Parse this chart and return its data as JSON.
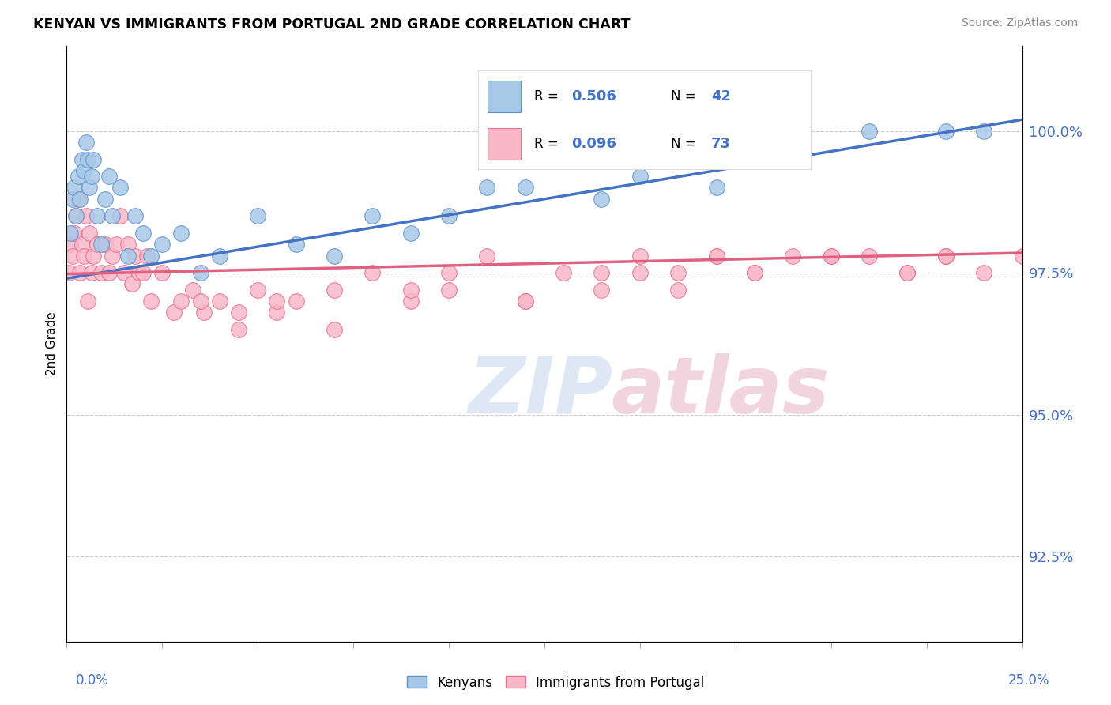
{
  "title": "KENYAN VS IMMIGRANTS FROM PORTUGAL 2ND GRADE CORRELATION CHART",
  "source": "Source: ZipAtlas.com",
  "ylabel": "2nd Grade",
  "y_tick_labels": [
    "92.5%",
    "95.0%",
    "97.5%",
    "100.0%"
  ],
  "y_tick_values": [
    92.5,
    95.0,
    97.5,
    100.0
  ],
  "x_min": 0.0,
  "x_max": 25.0,
  "y_min": 91.0,
  "y_max": 101.5,
  "blue_R": 0.506,
  "blue_N": 42,
  "pink_R": 0.096,
  "pink_N": 73,
  "blue_color": "#a8c8e8",
  "pink_color": "#f8b8c8",
  "blue_edge_color": "#6090c8",
  "pink_edge_color": "#e87090",
  "blue_line_color": "#4472c4",
  "pink_line_color": "#e06080",
  "legend_label_blue": "Kenyans",
  "legend_label_pink": "Immigrants from Portugal",
  "blue_scatter_x": [
    0.1,
    0.15,
    0.2,
    0.25,
    0.3,
    0.35,
    0.4,
    0.45,
    0.5,
    0.55,
    0.6,
    0.65,
    0.7,
    0.8,
    0.9,
    1.0,
    1.1,
    1.2,
    1.4,
    1.6,
    1.8,
    2.0,
    2.2,
    2.5,
    3.0,
    3.5,
    4.0,
    5.0,
    6.0,
    7.0,
    8.0,
    9.0,
    10.0,
    11.0,
    12.0,
    14.0,
    15.0,
    17.0,
    19.0,
    21.0,
    23.0,
    24.0
  ],
  "blue_scatter_y": [
    98.2,
    98.8,
    99.0,
    98.5,
    99.2,
    98.8,
    99.5,
    99.3,
    99.8,
    99.5,
    99.0,
    99.2,
    99.5,
    98.5,
    98.0,
    98.8,
    99.2,
    98.5,
    99.0,
    97.8,
    98.5,
    98.2,
    97.8,
    98.0,
    98.2,
    97.5,
    97.8,
    98.5,
    98.0,
    97.8,
    98.5,
    98.2,
    98.5,
    99.0,
    99.0,
    98.8,
    99.2,
    99.0,
    99.5,
    100.0,
    100.0,
    100.0
  ],
  "pink_scatter_x": [
    0.05,
    0.1,
    0.15,
    0.2,
    0.25,
    0.3,
    0.35,
    0.4,
    0.45,
    0.5,
    0.55,
    0.6,
    0.65,
    0.7,
    0.8,
    0.9,
    1.0,
    1.1,
    1.2,
    1.3,
    1.4,
    1.5,
    1.6,
    1.7,
    1.8,
    1.9,
    2.0,
    2.1,
    2.2,
    2.5,
    2.8,
    3.0,
    3.3,
    3.6,
    4.0,
    4.5,
    5.0,
    5.5,
    6.0,
    7.0,
    8.0,
    9.0,
    10.0,
    11.0,
    12.0,
    13.0,
    14.0,
    15.0,
    16.0,
    17.0,
    18.0,
    19.0,
    20.0,
    21.0,
    22.0,
    23.0,
    24.0,
    25.0,
    3.5,
    4.5,
    5.5,
    7.0,
    9.0,
    12.0,
    15.0,
    17.0,
    20.0,
    22.0,
    23.0,
    18.0,
    10.0,
    14.0,
    16.0
  ],
  "pink_scatter_y": [
    97.5,
    98.0,
    97.8,
    98.2,
    98.5,
    98.8,
    97.5,
    98.0,
    97.8,
    98.5,
    97.0,
    98.2,
    97.5,
    97.8,
    98.0,
    97.5,
    98.0,
    97.5,
    97.8,
    98.0,
    98.5,
    97.5,
    98.0,
    97.3,
    97.8,
    97.5,
    97.5,
    97.8,
    97.0,
    97.5,
    96.8,
    97.0,
    97.2,
    96.8,
    97.0,
    96.5,
    97.2,
    96.8,
    97.0,
    97.2,
    97.5,
    97.0,
    97.5,
    97.8,
    97.0,
    97.5,
    97.2,
    97.8,
    97.5,
    97.8,
    97.5,
    97.8,
    97.8,
    97.8,
    97.5,
    97.8,
    97.5,
    97.8,
    97.0,
    96.8,
    97.0,
    96.5,
    97.2,
    97.0,
    97.5,
    97.8,
    97.8,
    97.5,
    97.8,
    97.5,
    97.2,
    97.5,
    97.2
  ],
  "background_color": "#ffffff",
  "grid_color": "#cccccc",
  "legend_blue_R": "R = 0.506",
  "legend_blue_N": "N = 42",
  "legend_pink_R": "R = 0.096",
  "legend_pink_N": "N = 73"
}
